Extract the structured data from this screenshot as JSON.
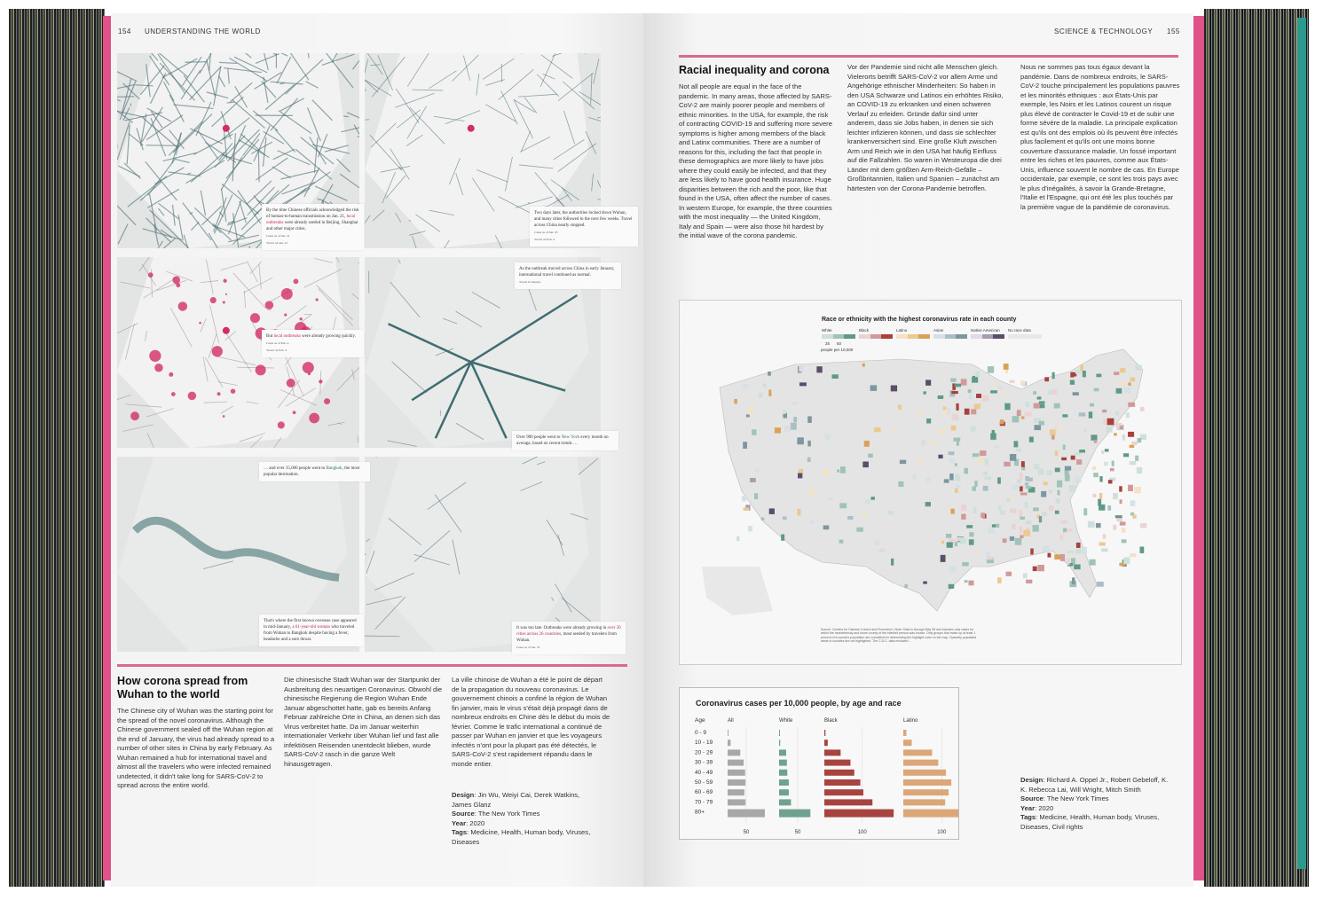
{
  "left_page": {
    "page_number": "154",
    "section": "UNDERSTANDING THE WORLD",
    "panels": [
      {
        "caption_parts": [
          "By the time Chinese officials acknowledged the risk of human-to-human transmission on Jan. 21, ",
          "local outbreaks",
          " were already seeded in Beijing, Shanghai and other major cities."
        ],
        "legend": [
          "Cases as of Jan. 21",
          "Travel on Jan. 21"
        ]
      },
      {
        "caption_parts": [
          "Two days later, the authorities locked down Wuhan, and many cities followed in the next few weeks. Travel across China nearly stopped.",
          "",
          ""
        ],
        "legend": [
          "Cases as of Jan. 23",
          "Travel on Feb. 4"
        ]
      },
      {
        "caption_parts": [
          "But ",
          "local outbreaks",
          " were already growing quickly."
        ],
        "legend": [
          "Cases as of Feb. 4",
          "Travel on Feb. 4"
        ]
      },
      {
        "caption_parts": [
          "As the outbreak moved across China in early January, international travel continued as normal.",
          "",
          ""
        ],
        "legend": [
          "Travel in January"
        ]
      },
      {
        "caption_parts": [
          "… and over 15,000 people went to ",
          "Bangkok",
          ", the most popular destination."
        ],
        "legend": []
      },
      {
        "caption_parts": [
          "That's where the first known overseas case appeared in mid-January, ",
          "a 61-year-old woman",
          " who traveled from Wuhan to Bangkok despite having a fever, headache and a sore throat."
        ],
        "legend": []
      },
      {
        "caption_parts": [
          "It was too late. Outbreaks were already growing in ",
          "over 30 cities across 26 countries",
          ", most seeded by travelers from Wuhan."
        ],
        "legend": [
          "Cases as of Jan. 31"
        ]
      },
      {
        "caption_parts": [
          "Over 900 people went to ",
          "New York",
          " every month on average, based on recent trends …"
        ],
        "legend": []
      }
    ],
    "article": {
      "title": "How corona spread from Wuhan to the world",
      "en": "The Chinese city of Wuhan was the starting point for the spread of the novel coronavirus. Although the Chinese government sealed off the Wuhan region at the end of January, the virus had already spread to a number of other sites in China by early February. As Wuhan remained a hub for international travel and almost all the travelers who were infected remained undetected, it didn't take long for SARS-CoV-2 to spread across the entire world.",
      "de": "Die chinesische Stadt Wuhan war der Startpunkt der Ausbreitung des neuartigen Coronavirus. Obwohl die chinesische Regierung die Region Wuhan Ende Januar abgeschottet hatte, gab es bereits Anfang Februar zahlreiche Orte in China, an denen sich das Virus verbreitet hatte. Da im Januar weiterhin internationaler Verkehr über Wuhan lief und fast alle infektiösen Reisenden unentdeckt blieben, wurde SARS-CoV-2 rasch in die ganze Welt hinausgetragen.",
      "fr": "La ville chinoise de Wuhan a été le point de départ de la propagation du nouveau coronavirus. Le gouvernement chinois a confiné la région de Wuhan fin janvier, mais le virus s'était déjà propagé dans de nombreux endroits en Chine dès le début du mois de février. Comme le trafic international a continué de passer par Wuhan en janvier et que les voyageurs infectés n'ont pour la plupart pas été détectés, le SARS-CoV-2 s'est rapidement répandu dans le monde entier.",
      "credits": {
        "design_label": "Design",
        "design": "Jin Wu, Weiyi Cai, Derek Watkins, James Glanz",
        "source_label": "Source",
        "source": "The New York Times",
        "year_label": "Year",
        "year": "2020",
        "tags_label": "Tags",
        "tags": "Medicine, Health, Human body, Viruses, Diseases"
      }
    }
  },
  "right_page": {
    "page_number": "155",
    "section": "SCIENCE & TECHNOLOGY",
    "article": {
      "title": "Racial inequality and corona",
      "en": "Not all people are equal in the face of the pandemic. In many areas, those affected by SARS-CoV-2 are mainly poorer people and members of ethnic minorities. In the USA, for example, the risk of contracting COVID-19 and suffering more severe symptoms is higher among members of the black and Latinx communities. There are a number of reasons for this, including the fact that people in these demographics are more likely to have jobs where they could easily be infected, and that they are less likely to have good health insurance. Huge disparities between the rich and the poor, like that found in the USA, often affect the number of cases. In western Europe, for example, the three countries with the most inequality — the United Kingdom, Italy and Spain — were also those hit hardest by the initial wave of the corona pandemic.",
      "de": "Vor der Pandemie sind nicht alle Menschen gleich. Vielerorts betrifft SARS-CoV-2 vor allem Arme und Angehörige ethnischer Minderheiten: So haben in den USA Schwarze und Latinos ein erhöhtes Risiko, an COVID-19 zu erkranken und einen schweren Verlauf zu erleiden. Gründe dafür sind unter anderem, dass sie Jobs haben, in denen sie sich leichter infizieren können, und dass sie schlechter krankenversichert sind. Eine große Kluft zwischen Arm und Reich wie in den USA hat häufig Einfluss auf die Fallzahlen. So waren in Westeuropa die drei Länder mit dem größten Arm-Reich-Gefälle – Großbritannien, Italien und Spanien – zunächst am härtesten von der Corona-Pandemie betroffen.",
      "fr": "Nous ne sommes pas tous égaux devant la pandémie. Dans de nombreux endroits, le SARS-CoV-2 touche principalement les populations pauvres et les minorités ethniques : aux États-Unis par exemple, les Noirs et les Latinos courent un risque plus élevé de contracter le Covid-19 et de subir une forme sévère de la maladie. La principale explication est qu'ils ont des emplois où ils peuvent être infectés plus facilement et qu'ils ont une moins bonne couverture d'assurance maladie. Un fossé important entre les riches et les pauvres, comme aux États-Unis, influence souvent le nombre de cas. En Europe occidentale, par exemple, ce sont les trois pays avec le plus d'inégalités, à savoir la Grande-Bretagne, l'Italie et l'Espagne, qui ont été les plus touchés par la première vague de la pandémie de coronavirus.",
      "credits": {
        "design_label": "Design",
        "design": "Richard A. Oppel Jr., Robert Gebeloff, K. K. Rebecca Lai, Will Wright, Mitch Smith",
        "source_label": "Source",
        "source": "The New York Times",
        "year_label": "Year",
        "year": "2020",
        "tags_label": "Tags",
        "tags": "Medicine, Health, Human body, Viruses, Diseases, Civil rights"
      }
    },
    "map": {
      "title": "Race or ethnicity with the highest coronavirus rate in each county",
      "legend": [
        {
          "label": "White",
          "colors": [
            "#cfe0da",
            "#9fc3b6",
            "#5f9a86"
          ]
        },
        {
          "label": "Black",
          "colors": [
            "#ecd3d3",
            "#d09a9a",
            "#a8403c"
          ]
        },
        {
          "label": "Latino",
          "colors": [
            "#f3e2c6",
            "#ecc98e",
            "#d9a256"
          ]
        },
        {
          "label": "Asian",
          "colors": [
            "#d6e1e6",
            "#a9bec6",
            "#7d979f"
          ]
        },
        {
          "label": "Native American",
          "colors": [
            "#dedbe4",
            "#a99bb3",
            "#5c4e6a"
          ]
        },
        {
          "label": "No race data",
          "colors": [
            "#e8e8e8",
            "#e8e8e8",
            "#e8e8e8"
          ]
        }
      ],
      "scale_ticks": [
        "25",
        "50"
      ],
      "scale_unit": "people per 10,000",
      "source_note": "Source: Centers for Disease Control and Prevention | Note: Data is through May 28 and includes only cases for which the race/ethnicity and home county of the infected person was known. Only groups that make up at least 1 percent of a county's population are considered in determining the highlight color on the map. Sparsely populated areas in counties are not highlighted. The C.D.C. data excluded…"
    },
    "chart_data": {
      "type": "bar",
      "title": "Coronavirus cases per 10,000 people, by age and race",
      "orientation": "horizontal",
      "category_label": "Age",
      "categories": [
        "0 - 9",
        "10 - 19",
        "20 - 29",
        "30 - 39",
        "40 - 49",
        "50 - 59",
        "60 - 69",
        "70 - 79",
        "80+"
      ],
      "series": [
        {
          "name": "All",
          "color": "#a8a8a8",
          "tick": "50",
          "values": [
            2,
            8,
            34,
            43,
            47,
            48,
            45,
            48,
            100
          ]
        },
        {
          "name": "White",
          "color": "#6fa28f",
          "tick": "50",
          "values": [
            1,
            3,
            19,
            21,
            22,
            26,
            26,
            32,
            84
          ]
        },
        {
          "name": "Black",
          "color": "#a8443f",
          "tick": "100",
          "values": [
            3,
            9,
            43,
            69,
            79,
            95,
            103,
            127,
            183
          ]
        },
        {
          "name": "Latino",
          "color": "#dba778",
          "tick": "100",
          "values": [
            8,
            22,
            75,
            91,
            111,
            125,
            118,
            109,
            149
          ]
        }
      ]
    }
  }
}
